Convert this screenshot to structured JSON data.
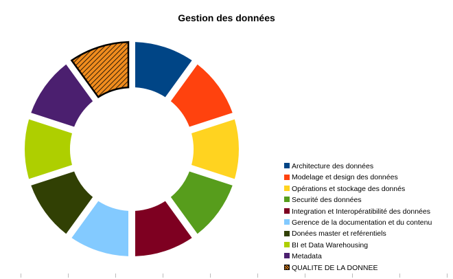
{
  "chart_data": {
    "type": "pie",
    "title": "Gestion des données",
    "categories": [
      "Architecture des données",
      "Modelage et design des données",
      "Opérations et stockage des donnés",
      "Securité des données",
      "Integration et Interopératibilité des données",
      "Gerence de la documentation et du contenu",
      "Donées master et reférentiels",
      "BI et Data Warehousing",
      "Metadata",
      "QUALITE DE LA DONNEE"
    ],
    "values": [
      1,
      1,
      1,
      1,
      1,
      1,
      1,
      1,
      1,
      1
    ],
    "colors": [
      "#004586",
      "#FF420E",
      "#FFD320",
      "#579D1C",
      "#7E0021",
      "#83CAFF",
      "#314004",
      "#AECF00",
      "#4B1F6F",
      "#F08C1E"
    ],
    "highlighted": "QUALITE DE LA DONNEE",
    "legend_position": "right"
  }
}
